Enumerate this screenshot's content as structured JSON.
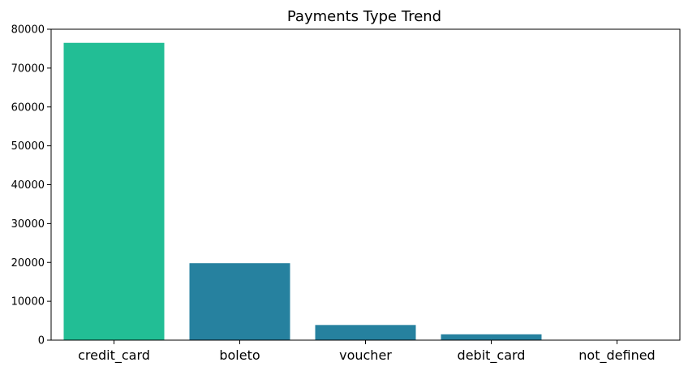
{
  "chart_data": {
    "type": "bar",
    "title": "Payments Type Trend",
    "categories": [
      "credit_card",
      "boleto",
      "voucher",
      "debit_card",
      "not_defined"
    ],
    "values": [
      76500,
      19800,
      3900,
      1500,
      3
    ],
    "colors": [
      "#22be95",
      "#26819f",
      "#26819f",
      "#26819f",
      "#26819f"
    ],
    "ylim": [
      0,
      80000
    ],
    "yticks": [
      0,
      10000,
      20000,
      30000,
      40000,
      50000,
      60000,
      70000,
      80000
    ],
    "xlabel": "",
    "ylabel": "",
    "grid": false
  }
}
